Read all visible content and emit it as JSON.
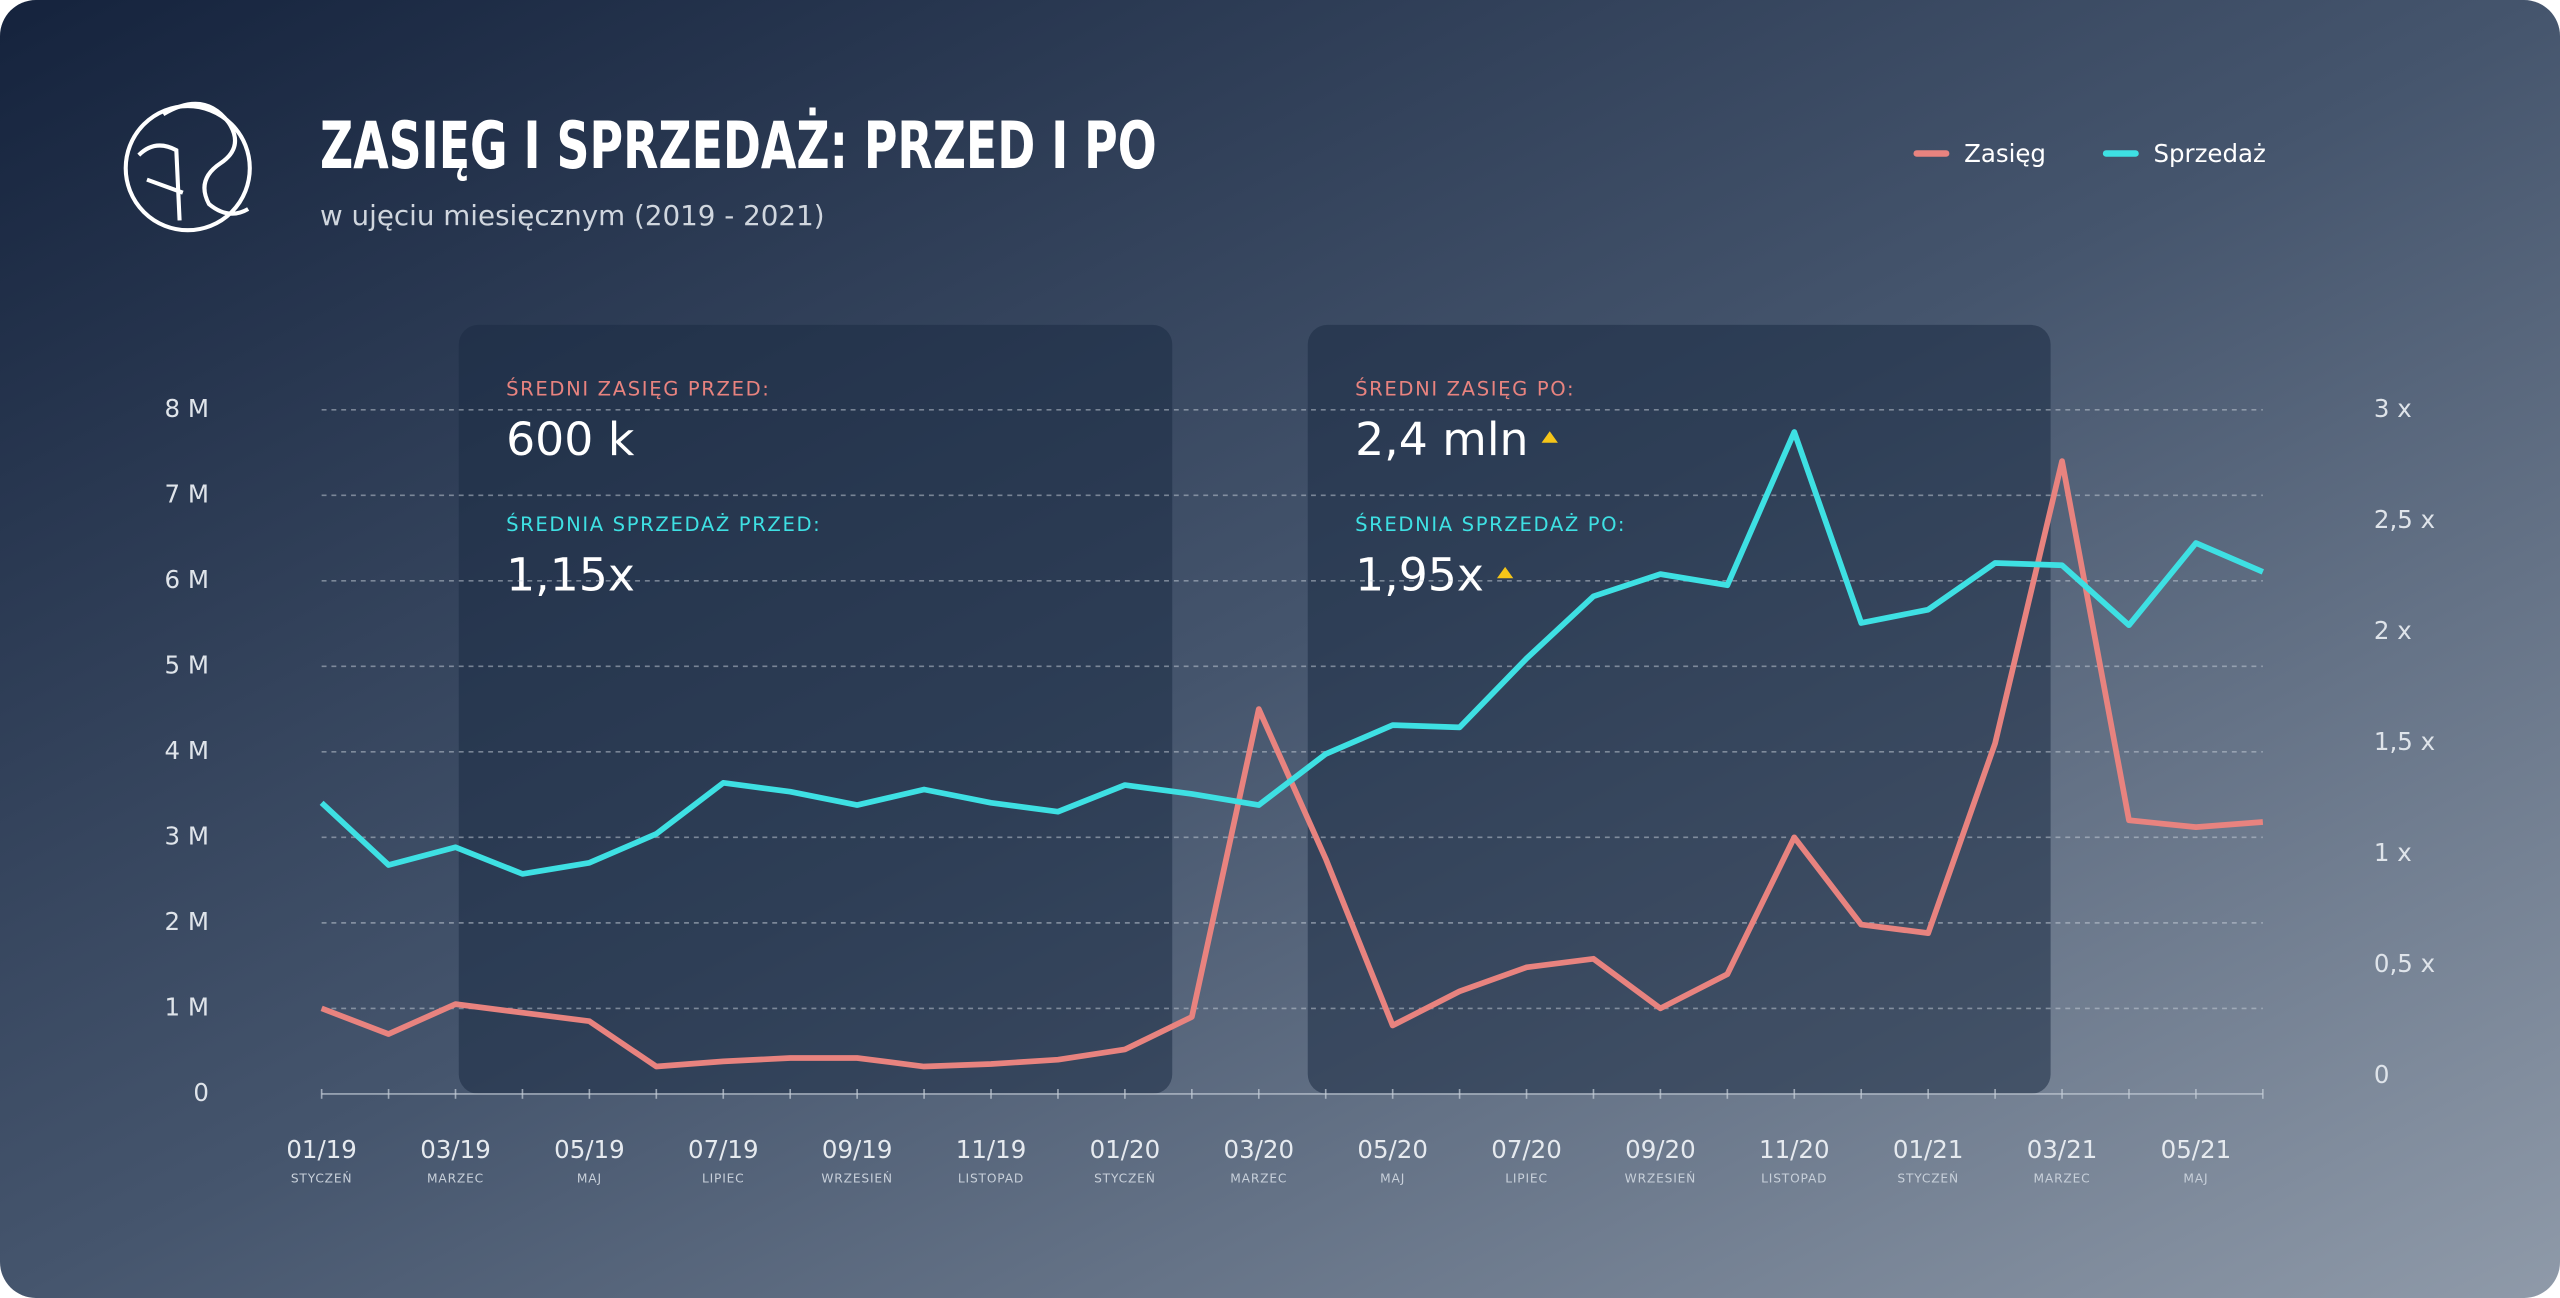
{
  "chart_data": {
    "type": "line",
    "title": "ZASIĘG I SPRZEDAŻ: PRZED I PO",
    "subtitle": "w ujęciu miesięcznym (2019 - 2021)",
    "categories": [
      "01/19",
      null,
      "03/19",
      null,
      "05/19",
      null,
      "07/19",
      null,
      "09/19",
      null,
      "11/19",
      null,
      "01/20",
      null,
      "03/20",
      null,
      "05/20",
      null,
      "07/20",
      null,
      "09/20",
      null,
      "11/20",
      null,
      "01/21",
      null,
      "03/21",
      null,
      "05/21",
      null
    ],
    "month_names": [
      "STYCZEŃ",
      null,
      "MARZEC",
      null,
      "MAJ",
      null,
      "LIPIEC",
      null,
      "WRZESIEŃ",
      null,
      "LISTOPAD",
      null,
      "STYCZEŃ",
      null,
      "MARZEC",
      null,
      "MAJ",
      null,
      "LIPIEC",
      null,
      "WRZESIEŃ",
      null,
      "LISTOPAD",
      null,
      "STYCZEŃ",
      null,
      "MARZEC",
      null,
      "MAJ",
      null
    ],
    "series": [
      {
        "name": "Zasięg",
        "color": "#e8837f",
        "values": [
          1.0,
          0.7,
          1.05,
          0.95,
          0.85,
          0.32,
          0.38,
          0.42,
          0.42,
          0.32,
          0.35,
          0.4,
          0.52,
          0.9,
          4.5,
          2.75,
          0.8,
          1.2,
          1.48,
          1.58,
          1.0,
          1.4,
          3.0,
          1.98,
          1.88,
          4.1,
          7.4,
          3.2,
          3.12,
          3.18
        ]
      },
      {
        "name": "Sprzedaż",
        "color": "#3ee0e3",
        "axis": "y2",
        "values": [
          1.23,
          0.95,
          1.03,
          0.91,
          0.96,
          1.09,
          1.32,
          1.28,
          1.22,
          1.29,
          1.23,
          1.19,
          1.31,
          1.27,
          1.22,
          1.45,
          1.58,
          1.57,
          1.88,
          2.16,
          2.26,
          2.21,
          2.9,
          2.04,
          2.1,
          2.31,
          2.3,
          2.03,
          2.4,
          2.27
        ]
      }
    ],
    "ylim": [
      0,
      8
    ],
    "yticks": [
      0,
      {
        "value": 1,
        "label": "1 M"
      },
      {
        "value": 2,
        "label": "2 M"
      },
      {
        "value": 3,
        "label": "3 M"
      },
      {
        "value": 4,
        "label": "4 M"
      },
      {
        "value": 5,
        "label": "5 M"
      },
      {
        "value": 6,
        "label": "6 M"
      },
      {
        "value": 7,
        "label": "7 M"
      },
      {
        "value": 8,
        "label": "8 M"
      }
    ],
    "y2lim": [
      0,
      3
    ],
    "y2ticks": [
      0,
      {
        "value": 0.5,
        "label": "0,5 x"
      },
      {
        "value": 1,
        "label": "1 x"
      },
      {
        "value": 1.5,
        "label": "1,5  x"
      },
      {
        "value": 2,
        "label": "2 x"
      },
      {
        "value": 2.5,
        "label": "2,5 x"
      },
      {
        "value": 3,
        "label": "3 x"
      }
    ],
    "grid": true,
    "legend": "top-right",
    "panels": [
      {
        "reach_label": "ŚREDNI ZASIĘG PRZED:",
        "reach": "600 k",
        "sales_label": "ŚREDNIA SPRZEDAŻ PRZED:",
        "sales": "1,15x"
      },
      {
        "reach_label": "ŚREDNI ZASIĘG PO:",
        "reach": "2,4 mln",
        "sales_label": "ŚREDNIA SPRZEDAŻ PO:",
        "sales": "1,95x"
      }
    ]
  }
}
